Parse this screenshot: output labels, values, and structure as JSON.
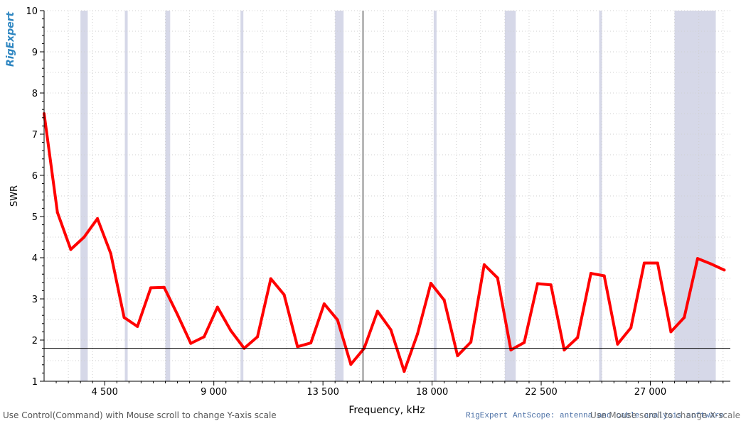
{
  "hints": {
    "left": "Use Control(Command) with Mouse scroll to change Y-axis scale",
    "right": "Use Mouse scroll to change X-scale"
  },
  "footer": "RigExpert AntScope: antenna and cable analysis software",
  "logo_text": "RigExpert",
  "colors": {
    "series": "#ff0000",
    "bands": "#d6d8e8",
    "grid": "#cfcfcf",
    "crosshair": "#000000",
    "logo": "#2e86c1"
  },
  "chart_data": {
    "type": "line",
    "xlabel": "Frequency, kHz",
    "ylabel": "SWR",
    "xlim": [
      2000,
      30300
    ],
    "ylim": [
      1,
      10
    ],
    "x_ticks": [
      4500,
      9000,
      13500,
      18000,
      22500,
      27000
    ],
    "x_tick_labels": [
      "4 500",
      "9 000",
      "13 500",
      "18 000",
      "22 500",
      "27 000"
    ],
    "y_ticks": [
      1,
      2,
      3,
      4,
      5,
      6,
      7,
      8,
      9,
      10
    ],
    "y_tick_labels": [
      "1",
      "2",
      "3",
      "4",
      "5",
      "6",
      "7",
      "8",
      "9",
      "10"
    ],
    "grid": true,
    "highlighted_bands": [
      [
        3500,
        3800
      ],
      [
        5330,
        5410
      ],
      [
        7000,
        7200
      ],
      [
        10100,
        10150
      ],
      [
        14000,
        14350
      ],
      [
        18068,
        18168
      ],
      [
        21000,
        21450
      ],
      [
        24890,
        24990
      ],
      [
        28000,
        29700
      ]
    ],
    "crosshair": {
      "x": 15150,
      "y": 1.8
    },
    "series": [
      {
        "color": "#ff0000",
        "x": [
          2000,
          2550,
          3100,
          3650,
          4200,
          4750,
          5300,
          5850,
          6400,
          6950,
          7500,
          8050,
          8600,
          9150,
          9700,
          10250,
          10800,
          11350,
          11900,
          12450,
          13000,
          13550,
          14100,
          14650,
          15200,
          15750,
          16300,
          16850,
          17400,
          17950,
          18500,
          19050,
          19600,
          20150,
          20700,
          21250,
          21800,
          22350,
          22900,
          23450,
          24000,
          24550,
          25100,
          25650,
          26200,
          26750,
          27300,
          27850,
          28400,
          28950,
          29500,
          30050
        ],
        "y": [
          7.5,
          5.1,
          4.2,
          4.5,
          4.95,
          4.1,
          2.55,
          2.33,
          3.27,
          3.28,
          2.62,
          1.92,
          2.08,
          2.8,
          2.23,
          1.8,
          2.08,
          3.49,
          3.1,
          1.84,
          1.93,
          2.88,
          2.49,
          1.41,
          1.8,
          2.7,
          2.25,
          1.24,
          2.15,
          3.38,
          2.97,
          1.62,
          1.95,
          3.83,
          3.51,
          1.76,
          1.94,
          3.37,
          3.34,
          1.76,
          2.06,
          3.62,
          3.56,
          1.9,
          2.3,
          3.87,
          3.87,
          2.2,
          2.55,
          3.98,
          3.85,
          3.7
        ]
      }
    ]
  }
}
